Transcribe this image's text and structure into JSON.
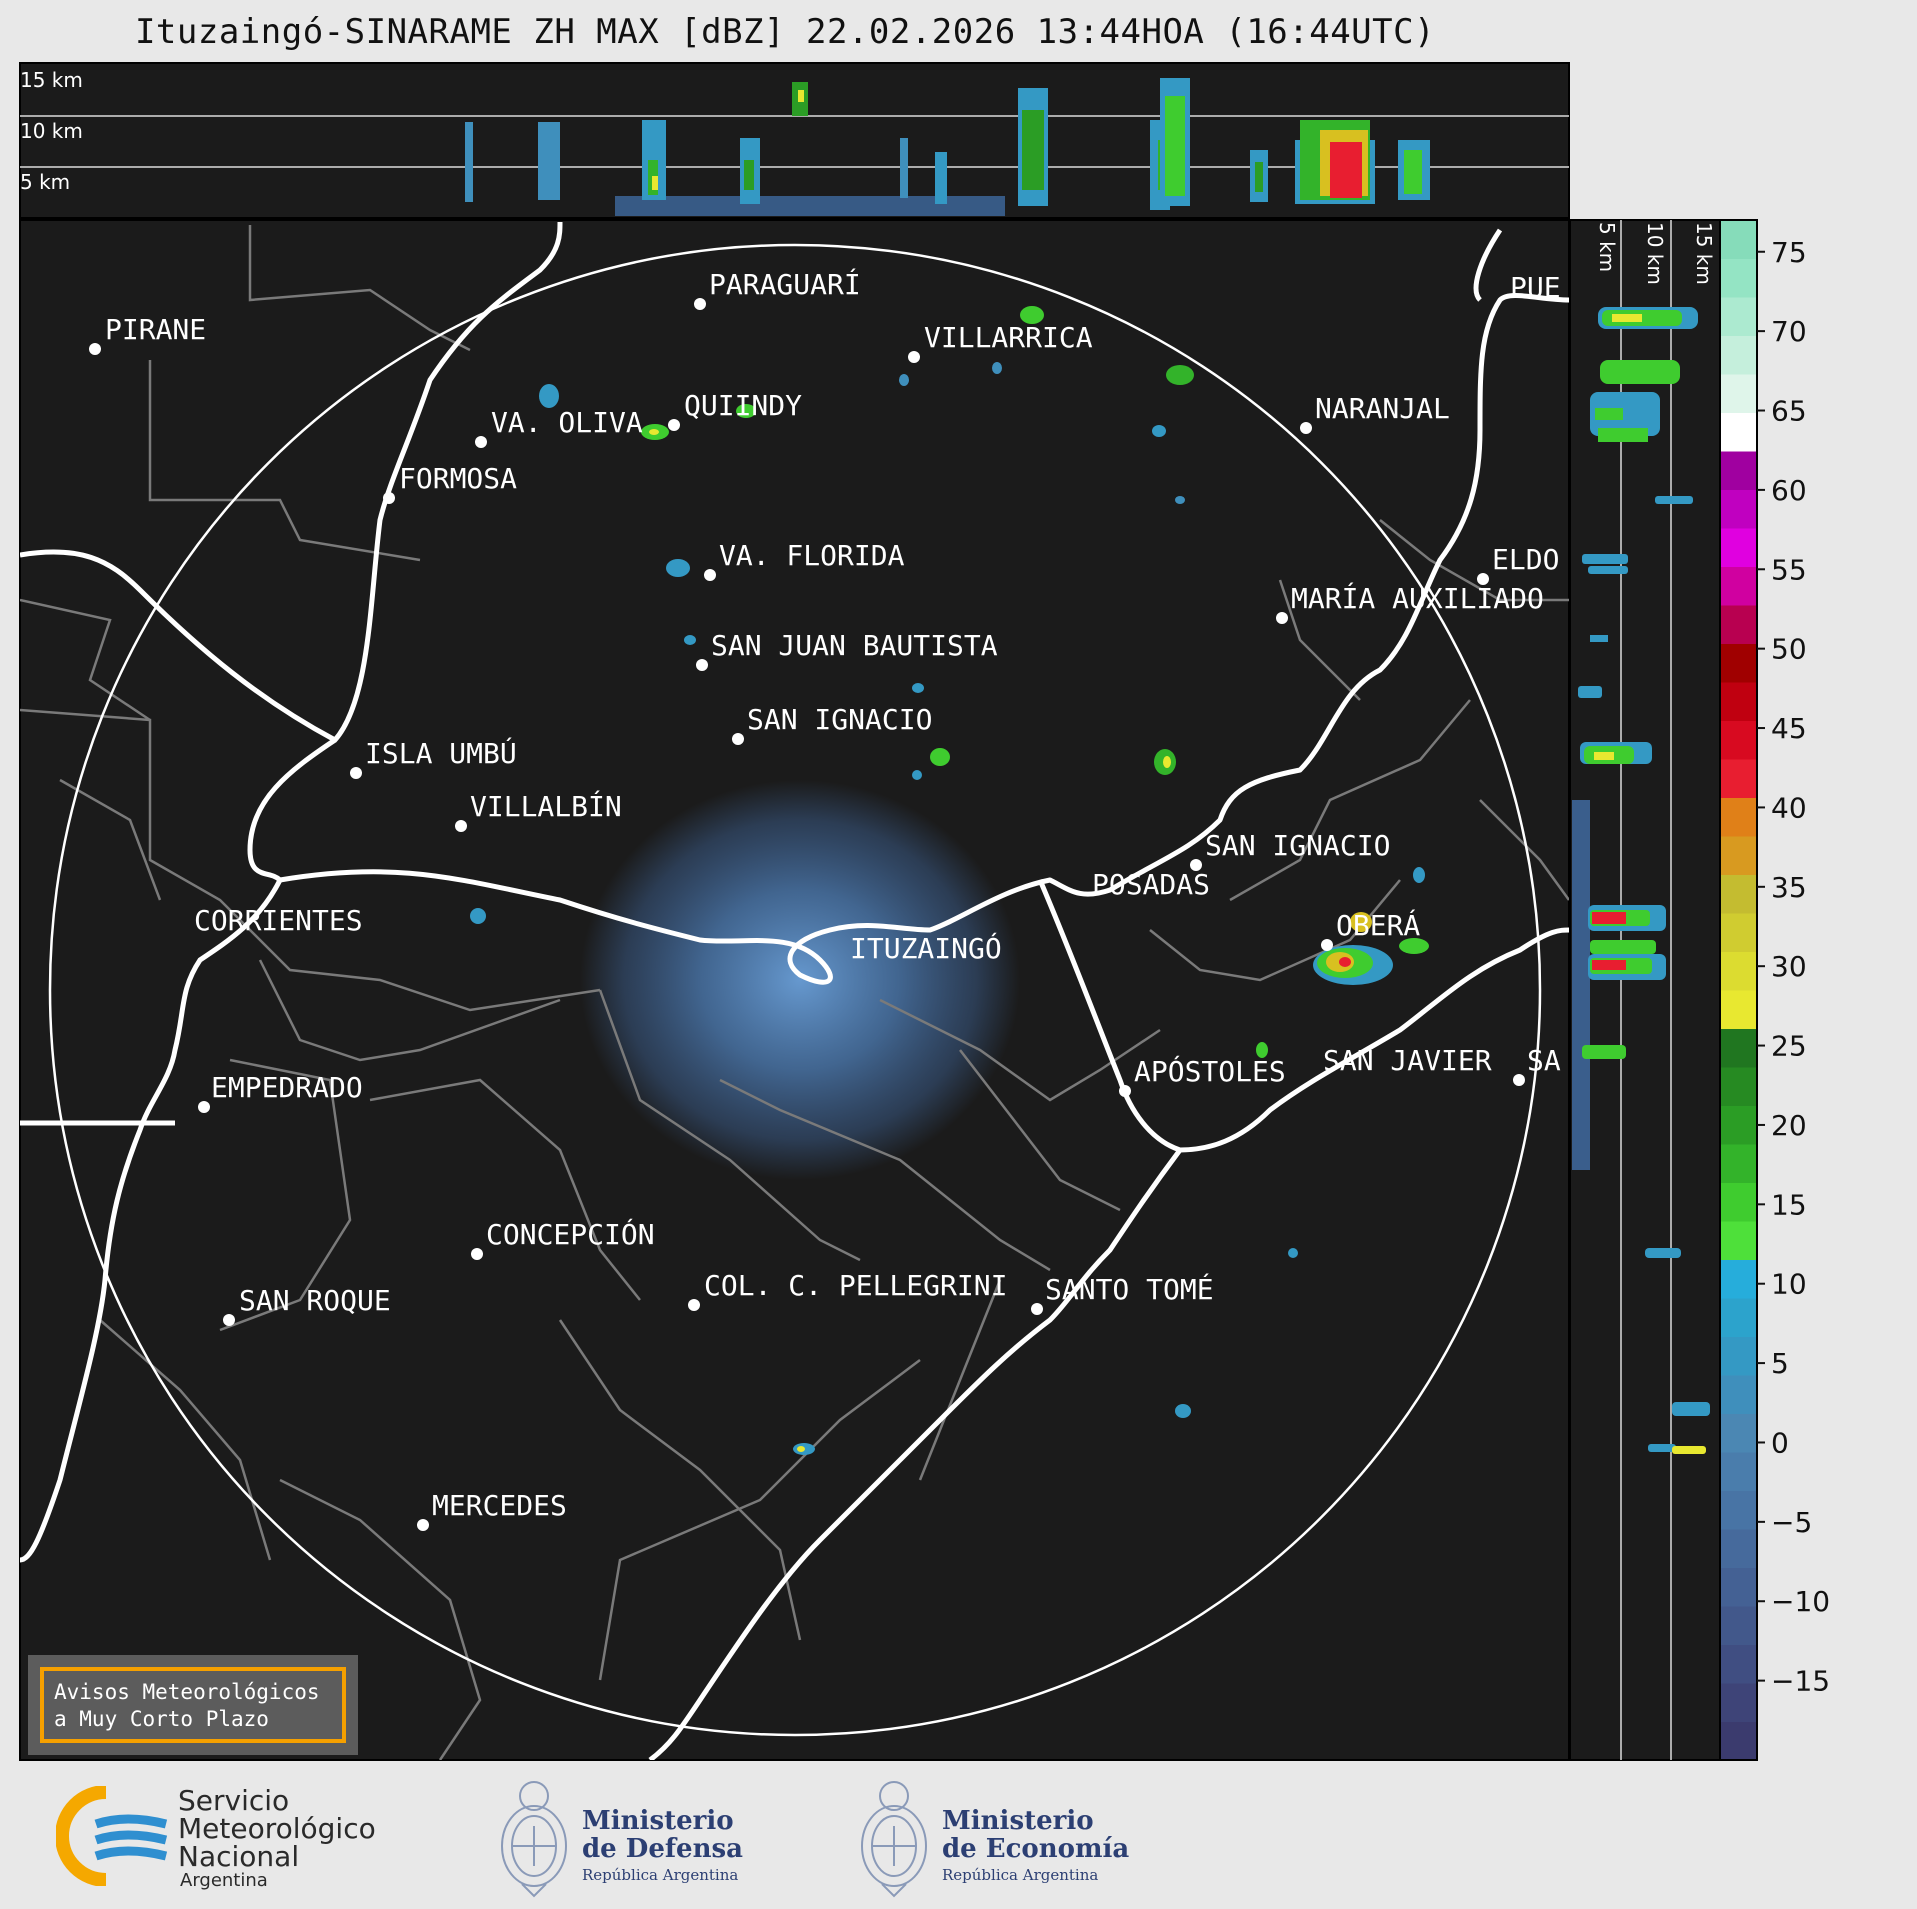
{
  "title": "Ituzaingó-SINARAME ZH MAX [dBZ] 22.02.2026 13:44HOA (16:44UTC)",
  "top_panel_altitudes": [
    "15 km",
    "10 km",
    "5 km"
  ],
  "side_panel_altitudes": [
    "5 km",
    "10 km",
    "15 km"
  ],
  "cities": [
    {
      "name": "PIRANE"
    },
    {
      "name": "PARAGUARÍ"
    },
    {
      "name": "VILLARRICA"
    },
    {
      "name": "QUIINDY"
    },
    {
      "name": "VA. OLIVA"
    },
    {
      "name": "FORMOSA"
    },
    {
      "name": "NARANJAL"
    },
    {
      "name": "PUE"
    },
    {
      "name": "VA. FLORIDA"
    },
    {
      "name": "ELDO"
    },
    {
      "name": "MARÍA AUXILIADO"
    },
    {
      "name": "SAN JUAN BAUTISTA"
    },
    {
      "name": "SAN IGNACIO"
    },
    {
      "name": "ISLA UMBÚ"
    },
    {
      "name": "VILLALBÍN"
    },
    {
      "name": "SAN IGNACIO"
    },
    {
      "name": "POSADAS"
    },
    {
      "name": "CORRIENTES"
    },
    {
      "name": "OBERÁ"
    },
    {
      "name": "ITUZAINGÓ"
    },
    {
      "name": "EMPEDRADO"
    },
    {
      "name": "APÓSTOLES"
    },
    {
      "name": "SAN JAVIER"
    },
    {
      "name": "SA"
    },
    {
      "name": "CONCEPCIÓN"
    },
    {
      "name": "COL. C. PELLEGRINI"
    },
    {
      "name": "SANTO TOMÉ"
    },
    {
      "name": "SAN ROQUE"
    },
    {
      "name": "MERCEDES"
    }
  ],
  "colorbar": {
    "ticks": [
      "75",
      "70",
      "65",
      "60",
      "55",
      "50",
      "45",
      "40",
      "35",
      "30",
      "25",
      "20",
      "15",
      "10",
      "5",
      "0",
      "−5",
      "−10",
      "−15"
    ],
    "range": [
      -20,
      77
    ],
    "colors": [
      "#3b3b6e",
      "#3e4478",
      "#404e82",
      "#42588b",
      "#446194",
      "#466a9c",
      "#4874a5",
      "#4a7dac",
      "#4b87b3",
      "#3f8fbc",
      "#3499c4",
      "#2ca3cc",
      "#26addb",
      "#4ee03a",
      "#3fcc2f",
      "#33b32a",
      "#2b9d25",
      "#268a22",
      "#207620",
      "#e8e830",
      "#dcdc30",
      "#d0cc30",
      "#c4bc30",
      "#d89a20",
      "#e08018",
      "#e81e30",
      "#d80a20",
      "#c00010",
      "#a00000",
      "#b80050",
      "#d000a0",
      "#e000e0",
      "#c000c0",
      "#a000a0",
      "#ffffff",
      "#dff5ea",
      "#c5efdc",
      "#acead0",
      "#94e4c4",
      "#86dcba"
    ]
  },
  "alert_box": {
    "line1": "Avisos Meteorológicos",
    "line2": "a Muy Corto Plazo"
  },
  "logos": {
    "smn": {
      "line1": "Servicio",
      "line2": "Meteorológico",
      "line3": "Nacional",
      "line4": "Argentina"
    },
    "defensa": {
      "line1": "Ministerio",
      "line2": "de Defensa",
      "line3": "República Argentina"
    },
    "economia": {
      "line1": "Ministerio",
      "line2": "de Economía",
      "line3": "República Argentina"
    }
  }
}
